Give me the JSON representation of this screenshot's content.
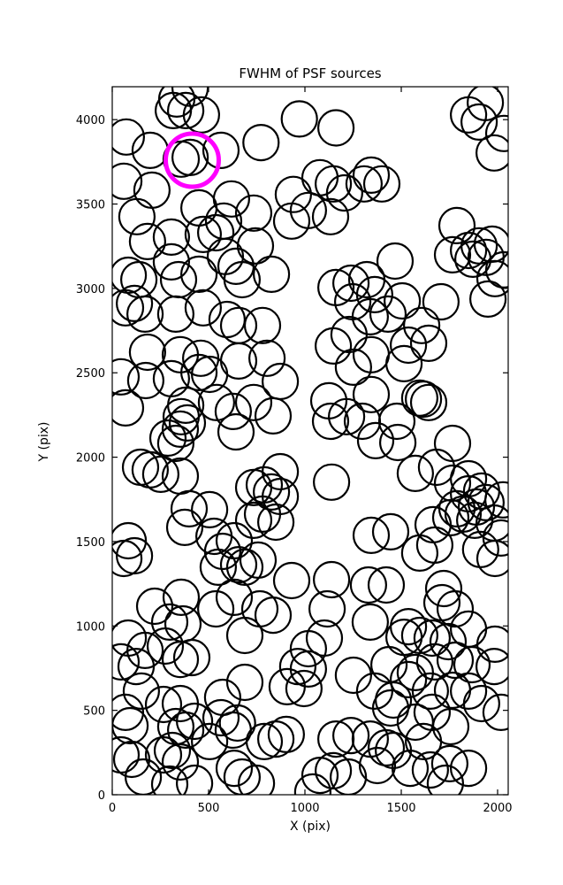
{
  "chart_data": {
    "type": "scatter",
    "title": "FWHM of PSF sources",
    "xlabel": "X (pix)",
    "ylabel": "Y (pix)",
    "xlim": [
      0,
      2055
    ],
    "ylim": [
      0,
      4195
    ],
    "xticks": [
      0,
      500,
      1000,
      1500,
      2000
    ],
    "yticks": [
      0,
      500,
      1000,
      1500,
      2000,
      2500,
      3000,
      3500,
      4000
    ],
    "grid": false,
    "legend": "none",
    "marker": {
      "shape": "circle",
      "fill": "none",
      "radius_px": 20,
      "stroke_width": 2.2
    },
    "colors": {
      "sources": "#000000",
      "highlight": "#ff00ff",
      "axes": "#000000",
      "background": "#ffffff"
    },
    "series": [
      {
        "name": "psf-sources",
        "color": "#000000",
        "points": [
          [
            335,
            4122
          ],
          [
            381,
            4054
          ],
          [
            317,
            4054
          ],
          [
            463,
            4028
          ],
          [
            404,
            4186
          ],
          [
            197,
            3818
          ],
          [
            73,
            3897
          ],
          [
            358,
            3766
          ],
          [
            404,
            3776
          ],
          [
            564,
            3818
          ],
          [
            60,
            3635
          ],
          [
            206,
            3582
          ],
          [
            450,
            3477
          ],
          [
            619,
            3530
          ],
          [
            578,
            3399
          ],
          [
            128,
            3425
          ],
          [
            971,
            4004
          ],
          [
            1161,
            3951
          ],
          [
            772,
            3864
          ],
          [
            940,
            3557
          ],
          [
            1147,
            3619
          ],
          [
            1078,
            3656
          ],
          [
            1206,
            3566
          ],
          [
            1307,
            3619
          ],
          [
            1344,
            3671
          ],
          [
            1018,
            3462
          ],
          [
            1133,
            3425
          ],
          [
            734,
            3446
          ],
          [
            931,
            3399
          ],
          [
            1904,
            3986
          ],
          [
            1849,
            4028
          ],
          [
            1936,
            4101
          ],
          [
            1982,
            3803
          ],
          [
            2032,
            3918
          ],
          [
            1399,
            3619
          ],
          [
            1789,
            3372
          ],
          [
            183,
            3278
          ],
          [
            307,
            3304
          ],
          [
            472,
            3320
          ],
          [
            537,
            3330
          ],
          [
            83,
            3078
          ],
          [
            138,
            3052
          ],
          [
            307,
            3157
          ],
          [
            344,
            3052
          ],
          [
            587,
            3189
          ],
          [
            642,
            3131
          ],
          [
            450,
            3084
          ],
          [
            674,
            3052
          ],
          [
            115,
            2911
          ],
          [
            170,
            2848
          ],
          [
            69,
            2885
          ],
          [
            330,
            2848
          ],
          [
            472,
            2885
          ],
          [
            596,
            2816
          ],
          [
            656,
            2780
          ],
          [
            183,
            2622
          ],
          [
            353,
            2607
          ],
          [
            459,
            2586
          ],
          [
            656,
            2570
          ],
          [
            743,
            3252
          ],
          [
            826,
            3084
          ],
          [
            1161,
            3005
          ],
          [
            1239,
            3031
          ],
          [
            1321,
            3052
          ],
          [
            1362,
            2963
          ],
          [
            1248,
            2921
          ],
          [
            1339,
            2832
          ],
          [
            780,
            2780
          ],
          [
            1229,
            2727
          ],
          [
            1147,
            2659
          ],
          [
            1344,
            2607
          ],
          [
            1252,
            2533
          ],
          [
            803,
            2586
          ],
          [
            1468,
            3162
          ],
          [
            1766,
            3199
          ],
          [
            1849,
            3225
          ],
          [
            1904,
            3252
          ],
          [
            1940,
            3184
          ],
          [
            1972,
            3262
          ],
          [
            1872,
            3173
          ],
          [
            1986,
            3058
          ],
          [
            2032,
            3110
          ],
          [
            1950,
            2937
          ],
          [
            1706,
            2921
          ],
          [
            1505,
            2926
          ],
          [
            1431,
            2848
          ],
          [
            1606,
            2780
          ],
          [
            1537,
            2664
          ],
          [
            1642,
            2675
          ],
          [
            1514,
            2554
          ],
          [
            46,
            2476
          ],
          [
            174,
            2454
          ],
          [
            307,
            2465
          ],
          [
            450,
            2502
          ],
          [
            505,
            2491
          ],
          [
            69,
            2292
          ],
          [
            381,
            2308
          ],
          [
            358,
            2240
          ],
          [
            390,
            2203
          ],
          [
            353,
            2166
          ],
          [
            289,
            2113
          ],
          [
            330,
            2082
          ],
          [
            628,
            2271
          ],
          [
            642,
            2150
          ],
          [
            541,
            2324
          ],
          [
            147,
            1940
          ],
          [
            197,
            1925
          ],
          [
            252,
            1899
          ],
          [
            353,
            1888
          ],
          [
            399,
            1694
          ],
          [
            505,
            1689
          ],
          [
            872,
            2449
          ],
          [
            835,
            2245
          ],
          [
            734,
            2324
          ],
          [
            1124,
            2334
          ],
          [
            1216,
            2240
          ],
          [
            1133,
            2213
          ],
          [
            1298,
            2213
          ],
          [
            1344,
            2371
          ],
          [
            1367,
            2098
          ],
          [
            872,
            1914
          ],
          [
            789,
            1836
          ],
          [
            826,
            1794
          ],
          [
            734,
            1820
          ],
          [
            872,
            1767
          ],
          [
            1138,
            1852
          ],
          [
            1615,
            2344
          ],
          [
            1596,
            2350
          ],
          [
            1642,
            2324
          ],
          [
            1477,
            2213
          ],
          [
            1482,
            2087
          ],
          [
            1766,
            2082
          ],
          [
            1573,
            1904
          ],
          [
            1683,
            1940
          ],
          [
            1766,
            1846
          ],
          [
            1849,
            1872
          ],
          [
            1849,
            1783
          ],
          [
            1917,
            1799
          ],
          [
            1940,
            1731
          ],
          [
            1890,
            1705
          ],
          [
            2028,
            1747
          ],
          [
            1789,
            1694
          ],
          [
            83,
            1505
          ],
          [
            115,
            1416
          ],
          [
            60,
            1400
          ],
          [
            376,
            1584
          ],
          [
            528,
            1531
          ],
          [
            573,
            1442
          ],
          [
            633,
            1505
          ],
          [
            656,
            1363
          ],
          [
            550,
            1348
          ],
          [
            358,
            1170
          ],
          [
            220,
            1117
          ],
          [
            298,
            1023
          ],
          [
            367,
            1012
          ],
          [
            537,
            1101
          ],
          [
            633,
            1170
          ],
          [
            83,
            928
          ],
          [
            170,
            855
          ],
          [
            275,
            881
          ],
          [
            780,
            1663
          ],
          [
            849,
            1615
          ],
          [
            734,
            1626
          ],
          [
            757,
            1390
          ],
          [
            688,
            1348
          ],
          [
            931,
            1269
          ],
          [
            1138,
            1274
          ],
          [
            1115,
            1101
          ],
          [
            1344,
            1537
          ],
          [
            1330,
            1243
          ],
          [
            1339,
            1023
          ],
          [
            766,
            1101
          ],
          [
            835,
            1064
          ],
          [
            1101,
            928
          ],
          [
            1018,
            865
          ],
          [
            688,
            944
          ],
          [
            1445,
            1558
          ],
          [
            1665,
            1600
          ],
          [
            1757,
            1642
          ],
          [
            1821,
            1663
          ],
          [
            1881,
            1626
          ],
          [
            1982,
            1610
          ],
          [
            2018,
            1521
          ],
          [
            1674,
            1479
          ],
          [
            1596,
            1432
          ],
          [
            1912,
            1453
          ],
          [
            1986,
            1400
          ],
          [
            1422,
            1243
          ],
          [
            1720,
            1222
          ],
          [
            1711,
            1138
          ],
          [
            1780,
            1101
          ],
          [
            1537,
            996
          ],
          [
            1596,
            944
          ],
          [
            1514,
            933
          ],
          [
            1660,
            928
          ],
          [
            1743,
            907
          ],
          [
            1849,
            981
          ],
          [
            1986,
            892
          ],
          [
            124,
            760
          ],
          [
            46,
            787
          ],
          [
            353,
            802
          ],
          [
            413,
            813
          ],
          [
            151,
            614
          ],
          [
            69,
            488
          ],
          [
            92,
            409
          ],
          [
            266,
            535
          ],
          [
            353,
            540
          ],
          [
            330,
            404
          ],
          [
            381,
            383
          ],
          [
            427,
            435
          ],
          [
            573,
            577
          ],
          [
            564,
            456
          ],
          [
            628,
            383
          ],
          [
            505,
            315
          ],
          [
            312,
            262
          ],
          [
            266,
            236
          ],
          [
            353,
            194
          ],
          [
            101,
            210
          ],
          [
            46,
            236
          ],
          [
            161,
            105
          ],
          [
            298,
            63
          ],
          [
            427,
            68
          ],
          [
            633,
            157
          ],
          [
            674,
            105
          ],
          [
            963,
            760
          ],
          [
            1018,
            745
          ],
          [
            908,
            640
          ],
          [
            995,
            629
          ],
          [
            1252,
            708
          ],
          [
            688,
            666
          ],
          [
            650,
            425
          ],
          [
            849,
            330
          ],
          [
            903,
            357
          ],
          [
            789,
            315
          ],
          [
            1161,
            330
          ],
          [
            1239,
            351
          ],
          [
            1339,
            330
          ],
          [
            1362,
            614
          ],
          [
            1147,
            142
          ],
          [
            1078,
            115
          ],
          [
            1225,
            105
          ],
          [
            748,
            68
          ],
          [
            1041,
            16
          ],
          [
            1436,
            771
          ],
          [
            1537,
            682
          ],
          [
            1459,
            561
          ],
          [
            1445,
            514
          ],
          [
            1573,
            724
          ],
          [
            1674,
            787
          ],
          [
            1780,
            797
          ],
          [
            1867,
            771
          ],
          [
            1982,
            760
          ],
          [
            1651,
            614
          ],
          [
            1766,
            619
          ],
          [
            1849,
            614
          ],
          [
            1917,
            540
          ],
          [
            2018,
            488
          ],
          [
            1660,
            488
          ],
          [
            1757,
            404
          ],
          [
            1573,
            430
          ],
          [
            1615,
            315
          ],
          [
            1459,
            262
          ],
          [
            1422,
            278
          ],
          [
            1546,
            157
          ],
          [
            1651,
            147
          ],
          [
            1752,
            184
          ],
          [
            1849,
            157
          ],
          [
            1729,
            68
          ],
          [
            1376,
            173
          ]
        ]
      },
      {
        "name": "highlighted-source",
        "color": "#ff00ff",
        "radius_px": 30,
        "stroke_width": 5,
        "points": [
          [
            415,
            3760
          ]
        ]
      }
    ]
  }
}
